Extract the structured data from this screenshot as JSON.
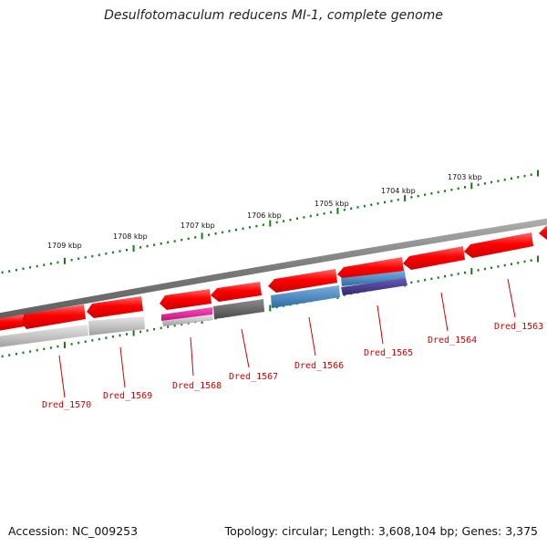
{
  "title": "Desulfotomaculum reducens MI-1, complete genome",
  "footer": {
    "accession": "Accession: NC_009253",
    "topology": "Topology: circular; Length: 3,608,104 bp; Genes: 3,375"
  },
  "kbp_labels": [
    "1709 kbp",
    "1708 kbp",
    "1707 kbp",
    "1706 kbp",
    "1705 kbp",
    "1704 kbp",
    "1703 kbp"
  ],
  "gene_labels": [
    "Dred_1570",
    "Dred_1569",
    "Dred_1568",
    "Dred_1567",
    "Dred_1566",
    "Dred_1565",
    "Dred_1564",
    "Dred_1563"
  ],
  "colors": {
    "cds": "#ff0000",
    "backbone": "#808080",
    "tick": "#1a7a1a",
    "label": "#d40000",
    "gray_feature": "#bdbdbd",
    "dark_gray_feature": "#606060",
    "magenta_feature": "#e0209a",
    "blue_feature": "#4a86bb",
    "purple_feature": "#4b3a8f"
  }
}
